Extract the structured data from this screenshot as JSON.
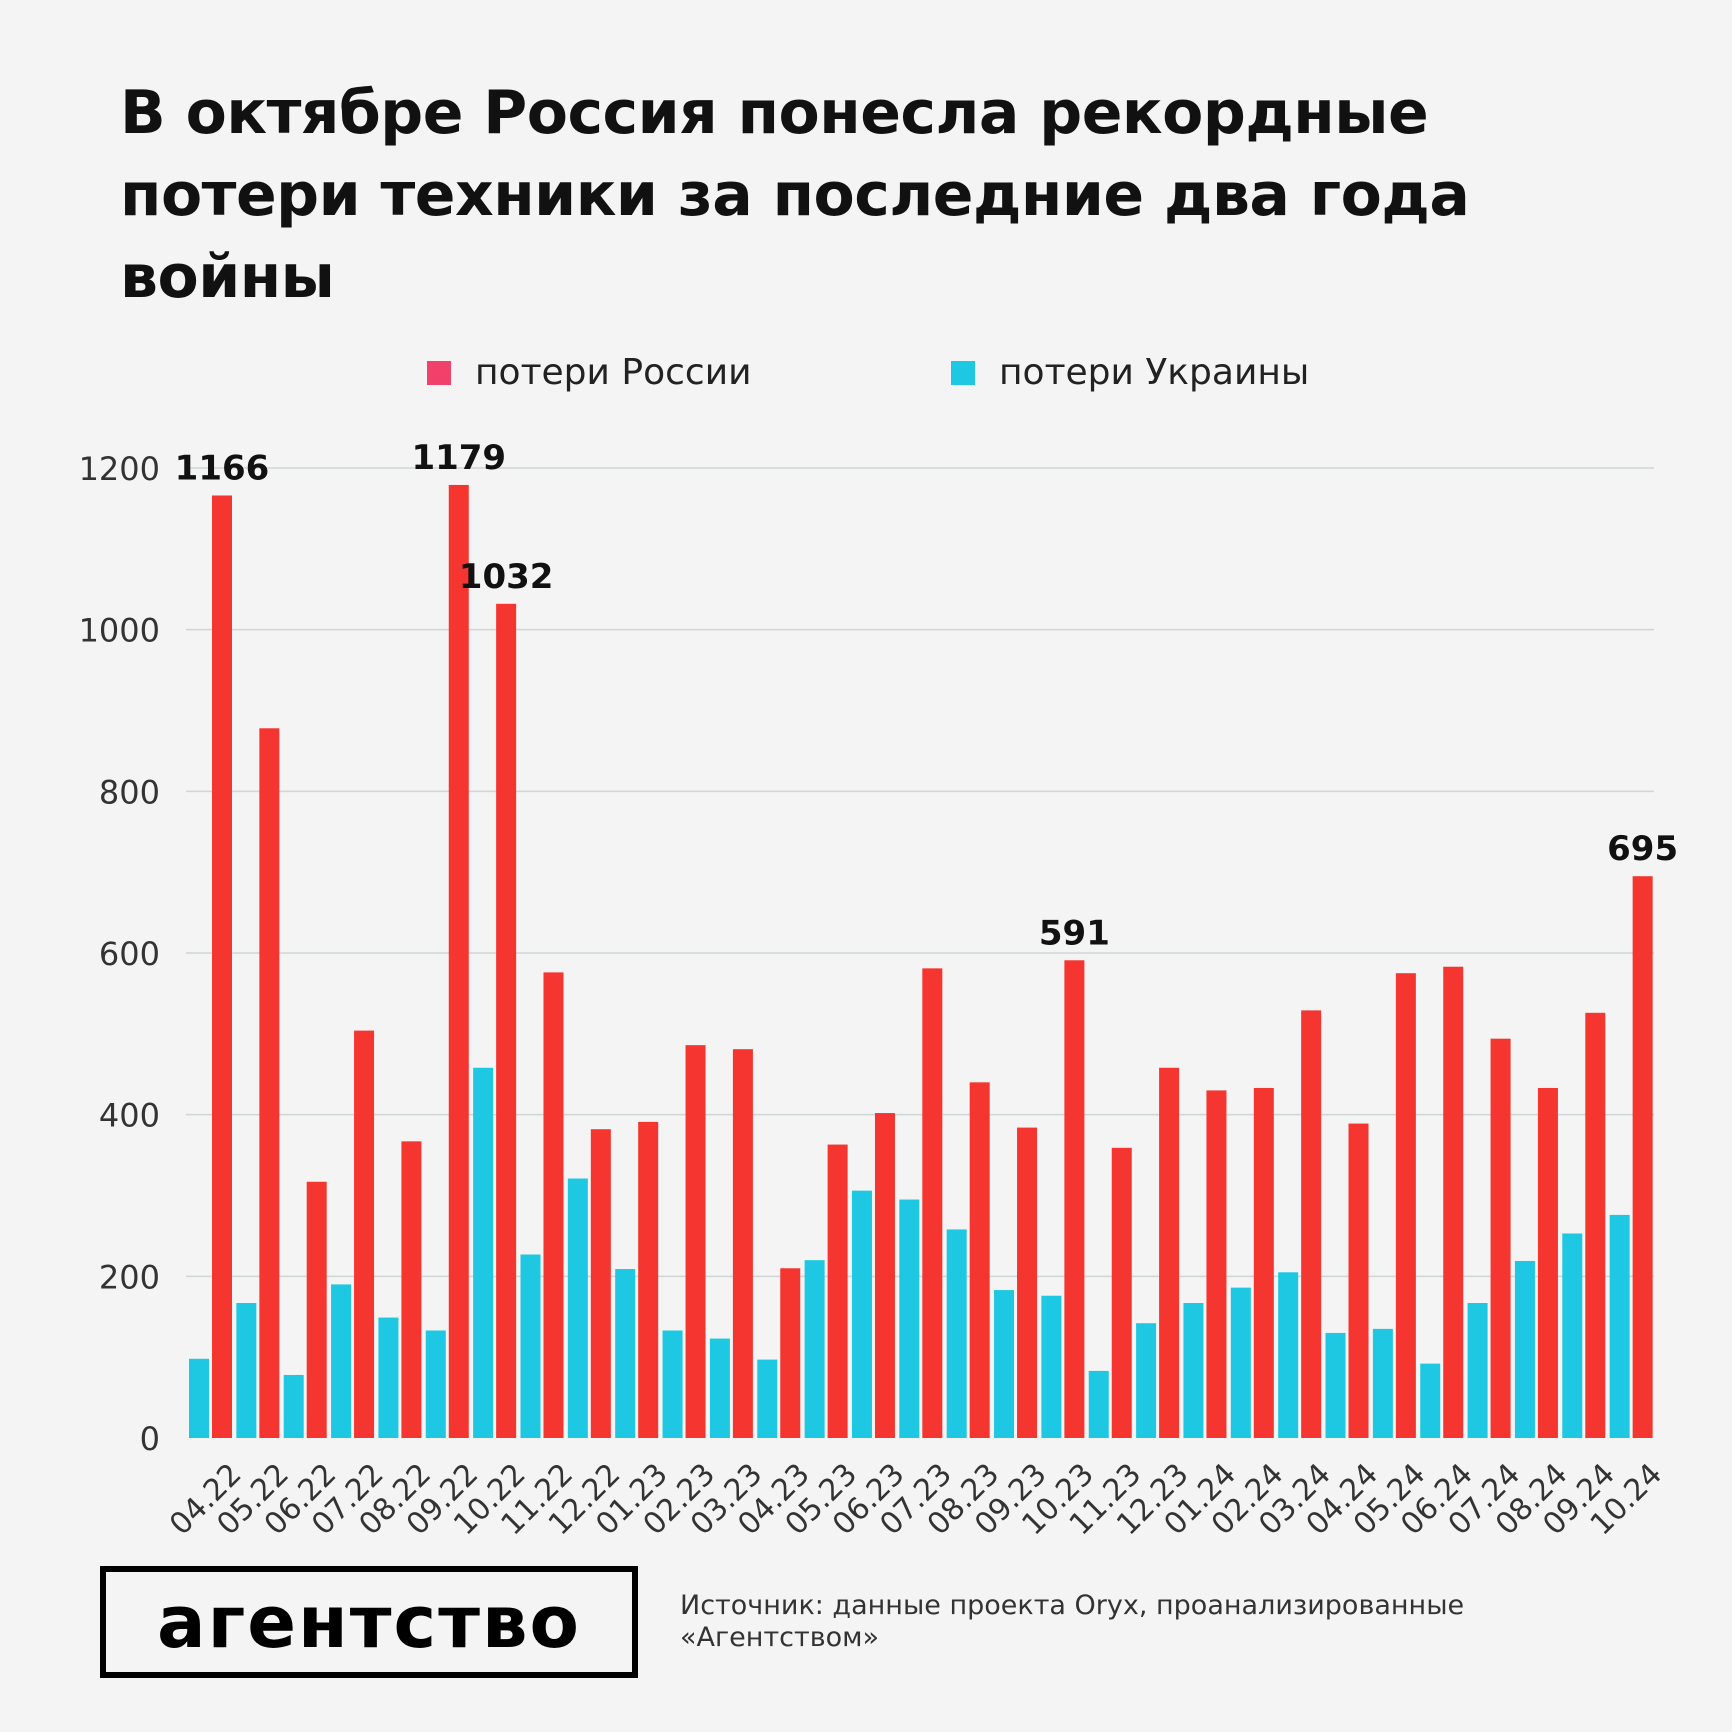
{
  "title": "В октябре Россия понесла рекордные потери техники за последние два года войны",
  "logo": "агентство",
  "source": "Источник: данные проекта Oryx, проанализированные «Агентством»",
  "chart_data": {
    "type": "bar",
    "title": "В октябре Россия понесла рекордные потери техники за последние два года войны",
    "categories": [
      "04.22",
      "05.22",
      "06.22",
      "07.22",
      "08.22",
      "09.22",
      "10.22",
      "11.22",
      "12.22",
      "01.23",
      "02.23",
      "03.23",
      "04.23",
      "05.23",
      "06.23",
      "07.23",
      "08.23",
      "09.23",
      "10.23",
      "11.23",
      "12.23",
      "01.24",
      "02.24",
      "03.24",
      "04.24",
      "05.24",
      "06.24",
      "07.24",
      "08.24",
      "09.24",
      "10.24"
    ],
    "series": [
      {
        "name": "потери Украины",
        "color": "#1ec8e2",
        "values": [
          98,
          167,
          78,
          190,
          149,
          133,
          458,
          227,
          321,
          209,
          133,
          123,
          97,
          220,
          306,
          295,
          258,
          183,
          176,
          83,
          142,
          167,
          186,
          205,
          130,
          135,
          92,
          167,
          219,
          253,
          276
        ]
      },
      {
        "name": "потери России",
        "color": "#f5352f",
        "legend_color": "#f1416a",
        "values": [
          1166,
          878,
          317,
          504,
          367,
          1179,
          1032,
          576,
          382,
          391,
          486,
          481,
          210,
          363,
          402,
          581,
          440,
          384,
          591,
          359,
          458,
          430,
          433,
          529,
          389,
          575,
          583,
          494,
          433,
          526,
          695
        ]
      }
    ],
    "data_labels": [
      {
        "category": "04.22",
        "text": "1166"
      },
      {
        "category": "09.22",
        "text": "1179"
      },
      {
        "category": "10.22",
        "text": "1032"
      },
      {
        "category": "10.23",
        "text": "591"
      },
      {
        "category": "10.24",
        "text": "695"
      }
    ],
    "yticks": [
      0,
      200,
      400,
      600,
      800,
      1000,
      1200
    ],
    "ylim": [
      0,
      1200
    ],
    "grid": true,
    "legend_placement": "top",
    "xlabel": "",
    "ylabel": ""
  }
}
